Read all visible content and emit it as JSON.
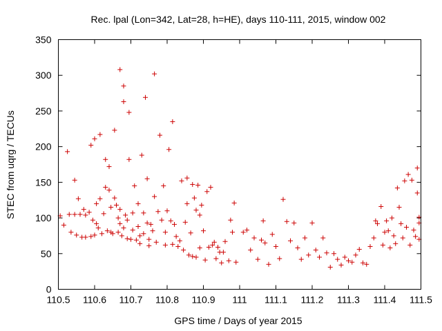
{
  "chart_data": {
    "type": "scatter",
    "title": "Rec. lpal (Lon=342, Lat=28, h=HE), days 110-111, 2015, window 002",
    "xlabel": "GPS time / Days of year 2015",
    "ylabel": "STEC from uqrg / TECUs",
    "xlim": [
      110.5,
      111.5
    ],
    "ylim": [
      0,
      350
    ],
    "xticks": [
      "110.5",
      "110.6",
      "110.7",
      "110.8",
      "110.9",
      "111",
      "111.1",
      "111.2",
      "111.3",
      "111.4",
      "111.5"
    ],
    "yticks": [
      "0",
      "50",
      "100",
      "150",
      "200",
      "250",
      "300",
      "350"
    ],
    "marker": "+",
    "color": "#cc0000",
    "grid": false,
    "series": [
      {
        "points": [
          [
            110.505,
            103
          ],
          [
            110.515,
            90
          ],
          [
            110.525,
            193
          ],
          [
            110.53,
            105
          ],
          [
            110.535,
            80
          ],
          [
            110.545,
            153
          ],
          [
            110.545,
            105
          ],
          [
            110.55,
            76
          ],
          [
            110.555,
            127
          ],
          [
            110.56,
            105
          ],
          [
            110.565,
            73
          ],
          [
            110.57,
            112
          ],
          [
            110.575,
            104
          ],
          [
            110.575,
            73
          ],
          [
            110.585,
            108
          ],
          [
            110.59,
            74
          ],
          [
            110.59,
            202
          ],
          [
            110.595,
            97
          ],
          [
            110.6,
            211
          ],
          [
            110.6,
            76
          ],
          [
            110.605,
            120
          ],
          [
            110.605,
            92
          ],
          [
            110.61,
            86
          ],
          [
            110.615,
            217
          ],
          [
            110.615,
            127
          ],
          [
            110.62,
            78
          ],
          [
            110.625,
            106
          ],
          [
            110.63,
            182
          ],
          [
            110.63,
            143
          ],
          [
            110.635,
            82
          ],
          [
            110.64,
            172
          ],
          [
            110.64,
            139
          ],
          [
            110.645,
            115
          ],
          [
            110.645,
            80
          ],
          [
            110.65,
            78
          ],
          [
            110.655,
            223
          ],
          [
            110.655,
            128
          ],
          [
            110.66,
            118
          ],
          [
            110.665,
            100
          ],
          [
            110.665,
            80
          ],
          [
            110.67,
            308
          ],
          [
            110.67,
            112
          ],
          [
            110.67,
            92
          ],
          [
            110.675,
            75
          ],
          [
            110.68,
            86
          ],
          [
            110.68,
            285
          ],
          [
            110.68,
            263
          ],
          [
            110.685,
            104
          ],
          [
            110.69,
            71
          ],
          [
            110.69,
            97
          ],
          [
            110.695,
            248
          ],
          [
            110.695,
            182
          ],
          [
            110.7,
            70
          ],
          [
            110.705,
            107
          ],
          [
            110.705,
            83
          ],
          [
            110.71,
            145
          ],
          [
            110.715,
            69
          ],
          [
            110.72,
            88
          ],
          [
            110.72,
            120
          ],
          [
            110.725,
            75
          ],
          [
            110.725,
            64
          ],
          [
            110.73,
            188
          ],
          [
            110.735,
            107
          ],
          [
            110.735,
            78
          ],
          [
            110.74,
            269
          ],
          [
            110.745,
            155
          ],
          [
            110.745,
            93
          ],
          [
            110.75,
            70
          ],
          [
            110.75,
            61
          ],
          [
            110.755,
            91
          ],
          [
            110.76,
            82
          ],
          [
            110.765,
            302
          ],
          [
            110.765,
            130
          ],
          [
            110.77,
            66
          ],
          [
            110.775,
            109
          ],
          [
            110.78,
            216
          ],
          [
            110.785,
            97
          ],
          [
            110.79,
            145
          ],
          [
            110.795,
            80
          ],
          [
            110.795,
            62
          ],
          [
            110.8,
            110
          ],
          [
            110.805,
            196
          ],
          [
            110.81,
            96
          ],
          [
            110.815,
            63
          ],
          [
            110.815,
            235
          ],
          [
            110.82,
            91
          ],
          [
            110.825,
            74
          ],
          [
            110.83,
            60
          ],
          [
            110.835,
            68
          ],
          [
            110.84,
            152
          ],
          [
            110.845,
            55
          ],
          [
            110.85,
            94
          ],
          [
            110.855,
            156
          ],
          [
            110.855,
            120
          ],
          [
            110.86,
            48
          ],
          [
            110.865,
            79
          ],
          [
            110.87,
            147
          ],
          [
            110.87,
            46
          ],
          [
            110.875,
            128
          ],
          [
            110.88,
            111
          ],
          [
            110.88,
            45
          ],
          [
            110.885,
            146
          ],
          [
            110.89,
            104
          ],
          [
            110.89,
            58
          ],
          [
            110.895,
            118
          ],
          [
            110.9,
            82
          ],
          [
            110.905,
            41
          ],
          [
            110.91,
            137
          ],
          [
            110.915,
            59
          ],
          [
            110.92,
            143
          ],
          [
            110.925,
            62
          ],
          [
            110.93,
            66
          ],
          [
            110.935,
            43
          ],
          [
            110.94,
            59
          ],
          [
            110.945,
            52
          ],
          [
            110.95,
            37
          ],
          [
            110.955,
            52
          ],
          [
            110.96,
            67
          ],
          [
            110.97,
            40
          ],
          [
            110.975,
            97
          ],
          [
            110.98,
            80
          ],
          [
            110.985,
            121
          ],
          [
            110.99,
            38
          ],
          [
            111.01,
            80
          ],
          [
            111.02,
            83
          ],
          [
            111.03,
            55
          ],
          [
            111.04,
            72
          ],
          [
            111.05,
            42
          ],
          [
            111.06,
            69
          ],
          [
            111.065,
            96
          ],
          [
            111.07,
            65
          ],
          [
            111.08,
            35
          ],
          [
            111.09,
            77
          ],
          [
            111.1,
            60
          ],
          [
            111.11,
            43
          ],
          [
            111.12,
            126
          ],
          [
            111.13,
            95
          ],
          [
            111.14,
            68
          ],
          [
            111.15,
            93
          ],
          [
            111.16,
            58
          ],
          [
            111.17,
            42
          ],
          [
            111.18,
            72
          ],
          [
            111.19,
            48
          ],
          [
            111.2,
            93
          ],
          [
            111.21,
            55
          ],
          [
            111.22,
            45
          ],
          [
            111.23,
            72
          ],
          [
            111.24,
            51
          ],
          [
            111.25,
            31
          ],
          [
            111.26,
            50
          ],
          [
            111.27,
            42
          ],
          [
            111.28,
            34
          ],
          [
            111.29,
            45
          ],
          [
            111.3,
            40
          ],
          [
            111.31,
            38
          ],
          [
            111.32,
            48
          ],
          [
            111.33,
            56
          ],
          [
            111.34,
            37
          ],
          [
            111.35,
            35
          ],
          [
            111.36,
            60
          ],
          [
            111.37,
            72
          ],
          [
            111.375,
            96
          ],
          [
            111.38,
            92
          ],
          [
            111.39,
            116
          ],
          [
            111.395,
            62
          ],
          [
            111.4,
            80
          ],
          [
            111.405,
            96
          ],
          [
            111.41,
            82
          ],
          [
            111.415,
            58
          ],
          [
            111.42,
            100
          ],
          [
            111.425,
            75
          ],
          [
            111.43,
            64
          ],
          [
            111.435,
            142
          ],
          [
            111.44,
            115
          ],
          [
            111.445,
            92
          ],
          [
            111.45,
            72
          ],
          [
            111.455,
            152
          ],
          [
            111.46,
            87
          ],
          [
            111.465,
            161
          ],
          [
            111.47,
            62
          ],
          [
            111.475,
            153
          ],
          [
            111.48,
            83
          ],
          [
            111.485,
            74
          ],
          [
            111.49,
            170
          ],
          [
            111.49,
            135
          ],
          [
            111.495,
            101
          ],
          [
            111.495,
            93
          ],
          [
            111.495,
            70
          ]
        ]
      }
    ]
  }
}
